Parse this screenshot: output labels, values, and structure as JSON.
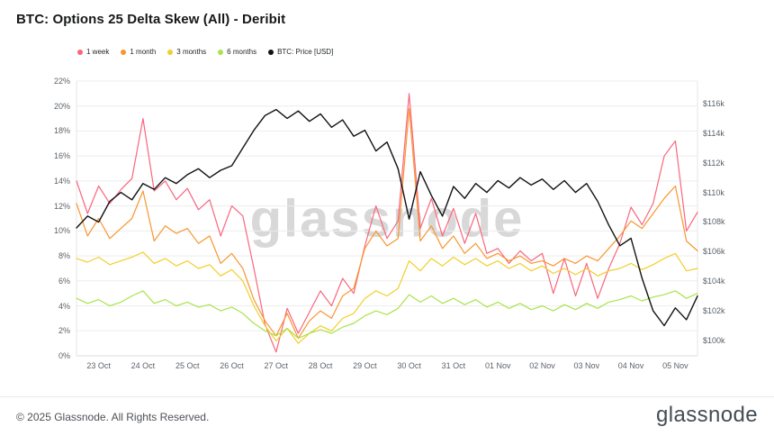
{
  "header": {
    "title": "BTC: Options 25 Delta Skew (All) - Deribit"
  },
  "watermark": {
    "text": "glassnode"
  },
  "footer": {
    "copyright": "© 2025 Glassnode. All Rights Reserved.",
    "logo_text": "glassnode"
  },
  "chart_data": {
    "type": "line",
    "title": "BTC: Options 25 Delta Skew (All) - Deribit",
    "grid": "horizontal",
    "legend_position": "top-left",
    "x_tick_labels": [
      "23 Oct",
      "24 Oct",
      "25 Oct",
      "26 Oct",
      "27 Oct",
      "28 Oct",
      "29 Oct",
      "30 Oct",
      "31 Oct",
      "01 Nov",
      "02 Nov",
      "03 Nov",
      "04 Nov",
      "05 Nov"
    ],
    "x_range_days": [
      -0.5,
      13.5
    ],
    "x_sample_step_days": 0.25,
    "left_axis": {
      "min": 0,
      "max": 22,
      "step": 2,
      "unit": "%",
      "tick_labels": [
        "22%",
        "20%",
        "18%",
        "16%",
        "14%",
        "12%",
        "10%",
        "8%",
        "6%",
        "4%",
        "2%",
        "0%"
      ]
    },
    "right_axis": {
      "min": 100,
      "max": 116,
      "step": 2,
      "unit": "USD thousands",
      "tick_labels": [
        "$116k",
        "$114k",
        "$112k",
        "$110k",
        "$108k",
        "$106k",
        "$104k",
        "$102k",
        "$100k"
      ],
      "top_frac": 0.082,
      "bottom_frac": 0.944
    },
    "series": [
      {
        "name": "1 week",
        "color": "#f9667d",
        "axis": "left",
        "values": [
          14.0,
          11.4,
          13.6,
          12.2,
          13.3,
          14.2,
          19.0,
          13.2,
          14.0,
          12.5,
          13.4,
          11.7,
          12.5,
          9.6,
          12.0,
          11.2,
          7.0,
          2.5,
          0.3,
          3.8,
          1.8,
          3.5,
          5.2,
          4.0,
          6.2,
          5.0,
          8.8,
          12.0,
          9.4,
          10.8,
          21.0,
          10.2,
          12.6,
          9.6,
          11.8,
          9.0,
          11.4,
          8.2,
          8.6,
          7.4,
          8.4,
          7.6,
          8.2,
          5.0,
          7.8,
          4.8,
          7.4,
          4.6,
          7.0,
          9.0,
          11.9,
          10.5,
          12.2,
          16.0,
          17.2,
          10.0,
          11.5
        ]
      },
      {
        "name": "1 month",
        "color": "#f8962e",
        "axis": "left",
        "values": [
          12.2,
          9.6,
          11.0,
          9.4,
          10.2,
          11.0,
          13.2,
          9.2,
          10.4,
          9.8,
          10.2,
          9.0,
          9.6,
          7.4,
          8.2,
          7.0,
          4.5,
          2.8,
          1.6,
          3.4,
          1.4,
          2.8,
          3.6,
          3.0,
          4.8,
          5.4,
          8.6,
          10.0,
          8.8,
          9.4,
          19.8,
          9.2,
          10.4,
          8.6,
          9.6,
          8.2,
          9.0,
          7.8,
          8.2,
          7.6,
          8.0,
          7.4,
          7.6,
          7.2,
          7.8,
          7.4,
          8.0,
          7.6,
          8.6,
          9.6,
          10.8,
          10.2,
          11.4,
          12.6,
          13.6,
          9.2,
          8.4
        ]
      },
      {
        "name": "3 months",
        "color": "#f2ce2b",
        "axis": "left",
        "values": [
          7.8,
          7.5,
          7.9,
          7.3,
          7.6,
          7.9,
          8.3,
          7.4,
          7.8,
          7.2,
          7.6,
          7.0,
          7.3,
          6.4,
          6.9,
          6.0,
          4.0,
          2.4,
          1.2,
          2.2,
          1.0,
          1.8,
          2.4,
          2.0,
          3.0,
          3.4,
          4.6,
          5.2,
          4.8,
          5.4,
          7.6,
          6.8,
          7.8,
          7.2,
          7.9,
          7.3,
          7.8,
          7.2,
          7.6,
          7.0,
          7.4,
          6.8,
          7.2,
          6.6,
          7.0,
          6.5,
          7.0,
          6.4,
          6.8,
          7.0,
          7.4,
          6.9,
          7.3,
          7.8,
          8.2,
          6.8,
          7.0
        ]
      },
      {
        "name": "6 months",
        "color": "#a9e34b",
        "axis": "left",
        "values": [
          4.6,
          4.2,
          4.5,
          4.0,
          4.3,
          4.8,
          5.2,
          4.2,
          4.5,
          4.0,
          4.3,
          3.9,
          4.1,
          3.6,
          3.9,
          3.4,
          2.6,
          2.0,
          1.6,
          2.2,
          1.4,
          1.8,
          2.1,
          1.8,
          2.3,
          2.6,
          3.2,
          3.6,
          3.3,
          3.8,
          4.9,
          4.3,
          4.8,
          4.2,
          4.6,
          4.1,
          4.5,
          3.9,
          4.3,
          3.8,
          4.2,
          3.7,
          4.0,
          3.6,
          4.1,
          3.7,
          4.2,
          3.8,
          4.3,
          4.5,
          4.8,
          4.4,
          4.7,
          4.9,
          5.2,
          4.6,
          5.0
        ]
      },
      {
        "name": "BTC: Price [USD]",
        "color": "#101214",
        "axis": "right",
        "values": [
          107.6,
          108.4,
          108.0,
          109.4,
          110.0,
          109.5,
          110.6,
          110.2,
          111.0,
          110.6,
          111.2,
          111.6,
          111.0,
          111.5,
          111.8,
          113.0,
          114.2,
          115.2,
          115.6,
          115.0,
          115.5,
          114.8,
          115.3,
          114.4,
          114.9,
          113.8,
          114.2,
          112.8,
          113.4,
          111.6,
          108.2,
          111.4,
          109.8,
          108.4,
          110.4,
          109.6,
          110.6,
          110.0,
          110.8,
          110.3,
          111.0,
          110.5,
          110.9,
          110.2,
          110.8,
          110.0,
          110.6,
          109.4,
          107.8,
          106.4,
          106.9,
          104.2,
          102.0,
          101.0,
          102.2,
          101.4,
          103.0
        ]
      }
    ]
  }
}
